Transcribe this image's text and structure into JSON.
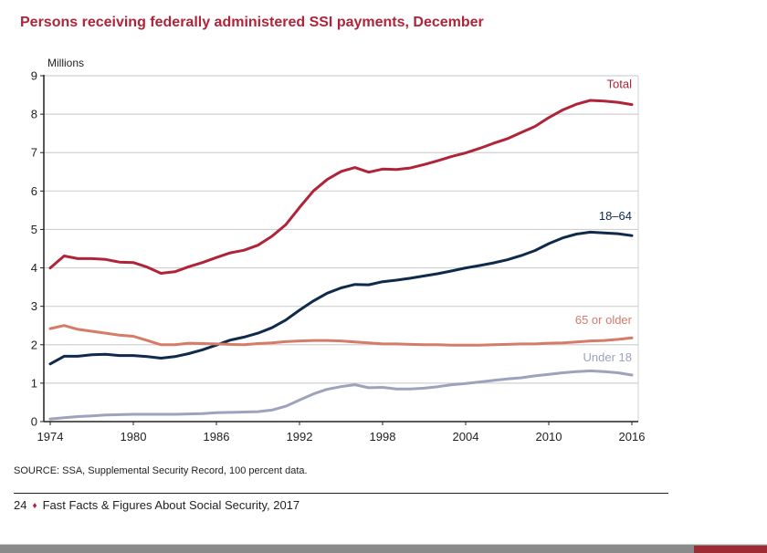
{
  "page": {
    "title": "Persons receiving federally administered SSI payments, December",
    "source": "SOURCE: SSA, Supplemental Security Record, 100 percent data.",
    "footer": {
      "page_number": "24",
      "separator": "♦",
      "publication": "Fast Facts & Figures About Social Security, 2017"
    }
  },
  "chart_data": {
    "type": "line",
    "title": "Persons receiving federally administered SSI payments, December",
    "xlabel": "",
    "ylabel": "Millions",
    "xlim": [
      1974,
      2016
    ],
    "ylim": [
      0,
      9
    ],
    "x_ticks": [
      1974,
      1980,
      1986,
      1992,
      1998,
      2004,
      2010,
      2016
    ],
    "y_ticks": [
      0,
      1,
      2,
      3,
      4,
      5,
      6,
      7,
      8,
      9
    ],
    "grid": "horizontal",
    "legend": "inline-labels-right",
    "x": [
      1974,
      1975,
      1976,
      1977,
      1978,
      1979,
      1980,
      1981,
      1982,
      1983,
      1984,
      1985,
      1986,
      1987,
      1988,
      1989,
      1990,
      1991,
      1992,
      1993,
      1994,
      1995,
      1996,
      1997,
      1998,
      1999,
      2000,
      2001,
      2002,
      2003,
      2004,
      2005,
      2006,
      2007,
      2008,
      2009,
      2010,
      2011,
      2012,
      2013,
      2014,
      2015,
      2016
    ],
    "series": [
      {
        "name": "Total",
        "color": "#b0243a",
        "values": [
          4.0,
          4.31,
          4.24,
          4.24,
          4.22,
          4.15,
          4.14,
          4.02,
          3.86,
          3.9,
          4.03,
          4.14,
          4.27,
          4.39,
          4.46,
          4.59,
          4.82,
          5.12,
          5.57,
          6.0,
          6.3,
          6.51,
          6.61,
          6.49,
          6.57,
          6.56,
          6.6,
          6.69,
          6.79,
          6.9,
          6.99,
          7.11,
          7.24,
          7.36,
          7.52,
          7.68,
          7.91,
          8.11,
          8.26,
          8.36,
          8.34,
          8.31,
          8.25
        ]
      },
      {
        "name": "18–64",
        "color": "#0f2a4a",
        "values": [
          1.5,
          1.7,
          1.7,
          1.74,
          1.75,
          1.72,
          1.72,
          1.69,
          1.65,
          1.69,
          1.77,
          1.87,
          1.99,
          2.12,
          2.2,
          2.3,
          2.44,
          2.64,
          2.9,
          3.14,
          3.34,
          3.48,
          3.57,
          3.56,
          3.64,
          3.68,
          3.73,
          3.79,
          3.85,
          3.92,
          4.0,
          4.06,
          4.13,
          4.21,
          4.32,
          4.45,
          4.63,
          4.78,
          4.88,
          4.93,
          4.91,
          4.89,
          4.84
        ]
      },
      {
        "name": "65 or older",
        "color": "#d57b68",
        "values": [
          2.42,
          2.5,
          2.4,
          2.35,
          2.3,
          2.25,
          2.22,
          2.11,
          2.0,
          2.0,
          2.04,
          2.03,
          2.02,
          2.01,
          2.0,
          2.03,
          2.05,
          2.08,
          2.1,
          2.11,
          2.11,
          2.1,
          2.07,
          2.05,
          2.02,
          2.02,
          2.01,
          2.0,
          2.0,
          1.99,
          1.99,
          1.99,
          2.0,
          2.01,
          2.02,
          2.02,
          2.04,
          2.05,
          2.07,
          2.1,
          2.11,
          2.14,
          2.18
        ]
      },
      {
        "name": "Under 18",
        "color": "#9da2bd",
        "values": [
          0.07,
          0.1,
          0.13,
          0.15,
          0.17,
          0.18,
          0.19,
          0.19,
          0.19,
          0.19,
          0.2,
          0.21,
          0.23,
          0.24,
          0.25,
          0.26,
          0.3,
          0.4,
          0.56,
          0.72,
          0.84,
          0.91,
          0.96,
          0.88,
          0.89,
          0.85,
          0.85,
          0.87,
          0.91,
          0.96,
          0.99,
          1.03,
          1.07,
          1.11,
          1.14,
          1.19,
          1.23,
          1.27,
          1.3,
          1.32,
          1.3,
          1.27,
          1.21
        ]
      }
    ]
  }
}
